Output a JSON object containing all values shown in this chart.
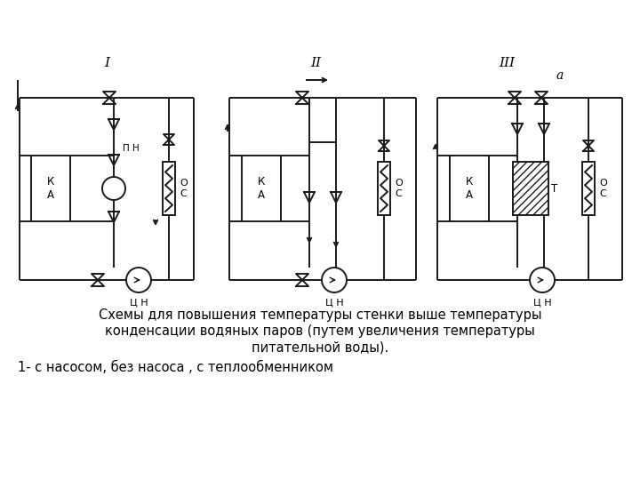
{
  "title_line1": "Схемы для повышения температуры стенки выше температуры",
  "title_line2": "конденсации водяных паров (путем увеличения температуры",
  "title_line3": "питательной воды).",
  "subtitle": "1- с насосом, без насоса , с теплообменником",
  "label_I": "I",
  "label_II": "II",
  "label_III": "III",
  "label_a": "a",
  "bg_color": "#ffffff",
  "line_color": "#1a1a1a",
  "font_size_title": 10.5,
  "fig_width": 7.2,
  "fig_height": 5.4
}
